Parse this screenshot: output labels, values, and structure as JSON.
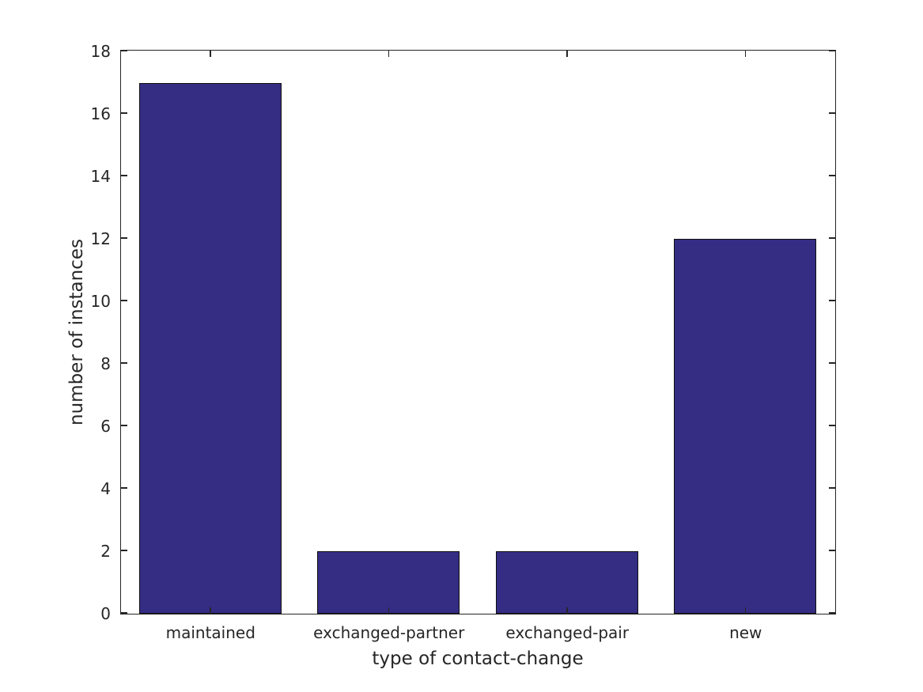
{
  "chart_data": {
    "type": "bar",
    "categories": [
      "maintained",
      "exchanged-partner",
      "exchanged-pair",
      "new"
    ],
    "values": [
      17,
      2,
      2,
      12
    ],
    "xlabel": "type of contact-change",
    "ylabel": "number of instances",
    "ylim": [
      0,
      18
    ],
    "yticks": [
      0,
      2,
      4,
      6,
      8,
      10,
      12,
      14,
      16,
      18
    ],
    "grid": false,
    "legend": false,
    "box": true,
    "tick_direction": "in",
    "bar_width_fraction": 0.8,
    "bar_color": "#352c84",
    "bar_edge_color": "#101010",
    "axis_color": "#262626",
    "text_color": "#262626",
    "background_color": "#ffffff"
  }
}
